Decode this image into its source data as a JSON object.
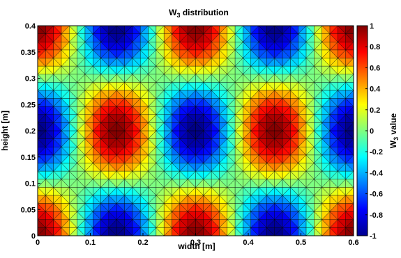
{
  "chart_data": {
    "type": "heatmap",
    "title": "W",
    "title_sub": "3",
    "title_rest": " distribution",
    "xlabel": "width [m]",
    "ylabel": "height [m]",
    "colorbar_label": "W",
    "colorbar_label_sub": "3",
    "colorbar_label_rest": " value",
    "xlim": [
      0,
      0.6
    ],
    "ylim": [
      0,
      0.4
    ],
    "clim": [
      -1,
      1
    ],
    "colormap": "jet",
    "mesh": "triangular, edges drawn in black",
    "xticks": [
      "0",
      "0.1",
      "0.2",
      "0.3",
      "0.4",
      "0.5",
      "0.6"
    ],
    "xtick_values": [
      0,
      0.1,
      0.2,
      0.3,
      0.4,
      0.5,
      0.6
    ],
    "yticks": [
      "0",
      "0.05",
      "0.1",
      "0.15",
      "0.2",
      "0.25",
      "0.3",
      "0.35",
      "0.4"
    ],
    "ytick_values": [
      0,
      0.05,
      0.1,
      0.15,
      0.2,
      0.25,
      0.3,
      0.35,
      0.4
    ],
    "colorbar_ticks": [
      "-1",
      "-0.8",
      "-0.6",
      "-0.4",
      "-0.2",
      "0",
      "0.2",
      "0.4",
      "0.6",
      "0.8",
      "1"
    ],
    "colorbar_tick_values": [
      -1,
      -0.8,
      -0.6,
      -0.4,
      -0.2,
      0,
      0.2,
      0.4,
      0.6,
      0.8,
      1
    ],
    "field": "W3 = cos(2*pi*(x - 0.3)/0.3) * cos(2*pi*y/0.4), normalized to [-1, 1]"
  }
}
